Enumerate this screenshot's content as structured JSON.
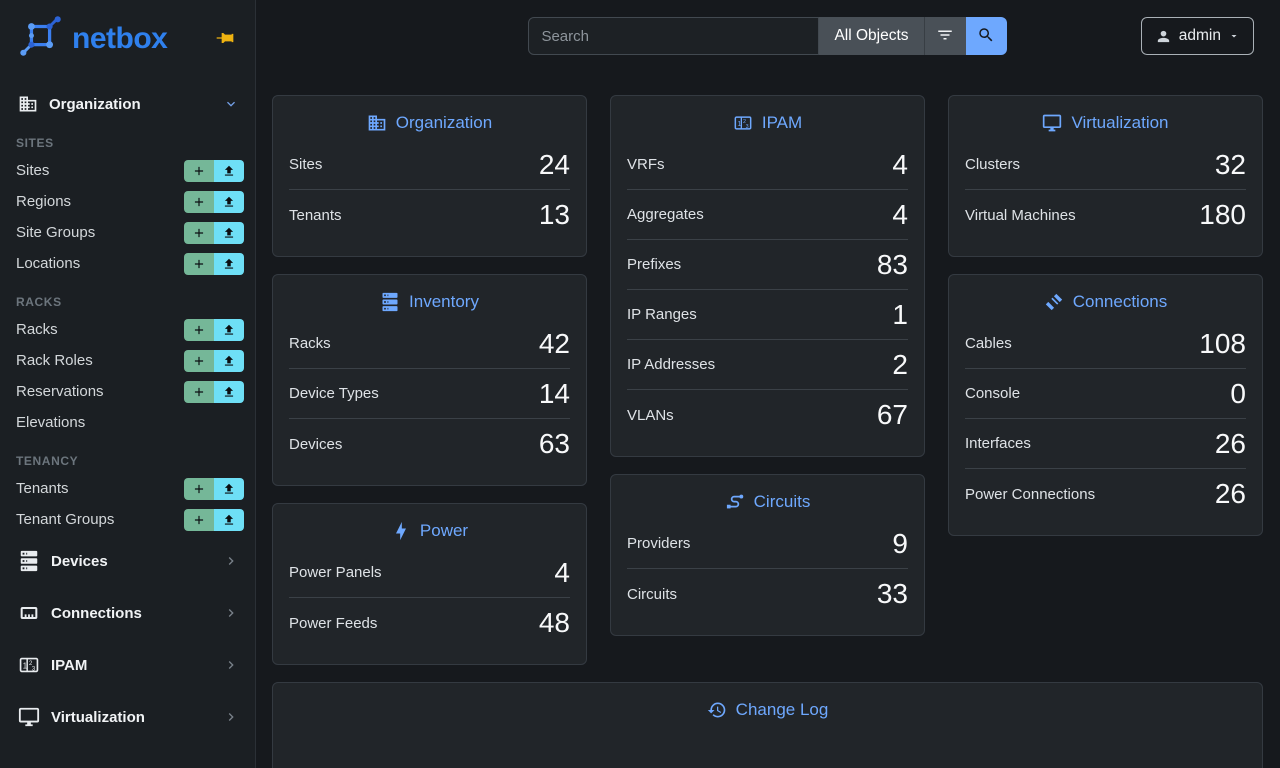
{
  "brand": {
    "name": "netbox",
    "logo_icon": "netbox-logo",
    "pin_icon": "pin-icon"
  },
  "topbar": {
    "search_placeholder": "Search",
    "scope_button_label": "All Objects",
    "filter_icon": "filter-icon",
    "search_icon": "search-icon",
    "user_label": "admin",
    "user_icon": "person-icon"
  },
  "sidebar": {
    "organization_menu": {
      "label": "Organization",
      "icon": "building-icon",
      "state": "expanded"
    },
    "sections": [
      {
        "title": "SITES",
        "items": [
          {
            "label": "Sites",
            "actions": true
          },
          {
            "label": "Regions",
            "actions": true
          },
          {
            "label": "Site Groups",
            "actions": true
          },
          {
            "label": "Locations",
            "actions": true
          }
        ]
      },
      {
        "title": "RACKS",
        "items": [
          {
            "label": "Racks",
            "actions": true
          },
          {
            "label": "Rack Roles",
            "actions": true
          },
          {
            "label": "Reservations",
            "actions": true
          },
          {
            "label": "Elevations",
            "actions": false
          }
        ]
      },
      {
        "title": "TENANCY",
        "items": [
          {
            "label": "Tenants",
            "actions": true
          },
          {
            "label": "Tenant Groups",
            "actions": true
          }
        ]
      }
    ],
    "action_icons": {
      "add": "plus-icon",
      "import": "upload-icon"
    },
    "menus": [
      {
        "label": "Devices",
        "icon": "server-icon"
      },
      {
        "label": "Connections",
        "icon": "ethernet-port-icon"
      },
      {
        "label": "IPAM",
        "icon": "counter-icon"
      },
      {
        "label": "Virtualization",
        "icon": "monitor-icon"
      }
    ]
  },
  "dashboard": {
    "columns": [
      [
        {
          "title": "Organization",
          "icon": "building-icon",
          "rows": [
            {
              "label": "Sites",
              "value": "24"
            },
            {
              "label": "Tenants",
              "value": "13"
            }
          ]
        },
        {
          "title": "Inventory",
          "icon": "server-icon",
          "rows": [
            {
              "label": "Racks",
              "value": "42"
            },
            {
              "label": "Device Types",
              "value": "14"
            },
            {
              "label": "Devices",
              "value": "63"
            }
          ]
        },
        {
          "title": "Power",
          "icon": "lightning-icon",
          "rows": [
            {
              "label": "Power Panels",
              "value": "4"
            },
            {
              "label": "Power Feeds",
              "value": "48"
            }
          ]
        }
      ],
      [
        {
          "title": "IPAM",
          "icon": "counter-icon",
          "rows": [
            {
              "label": "VRFs",
              "value": "4"
            },
            {
              "label": "Aggregates",
              "value": "4"
            },
            {
              "label": "Prefixes",
              "value": "83"
            },
            {
              "label": "IP Ranges",
              "value": "1"
            },
            {
              "label": "IP Addresses",
              "value": "2"
            },
            {
              "label": "VLANs",
              "value": "67"
            }
          ]
        },
        {
          "title": "Circuits",
          "icon": "transit-icon",
          "rows": [
            {
              "label": "Providers",
              "value": "9"
            },
            {
              "label": "Circuits",
              "value": "33"
            }
          ]
        }
      ],
      [
        {
          "title": "Virtualization",
          "icon": "monitor-icon",
          "rows": [
            {
              "label": "Clusters",
              "value": "32"
            },
            {
              "label": "Virtual Machines",
              "value": "180"
            }
          ]
        },
        {
          "title": "Connections",
          "icon": "cable-icon",
          "rows": [
            {
              "label": "Cables",
              "value": "108"
            },
            {
              "label": "Console",
              "value": "0"
            },
            {
              "label": "Interfaces",
              "value": "26"
            },
            {
              "label": "Power Connections",
              "value": "26"
            }
          ]
        }
      ]
    ],
    "change_log_card": {
      "title": "Change Log",
      "icon": "history-icon"
    }
  },
  "colors": {
    "accent_blue": "#6ea8fe",
    "brand_blue": "#2f80ed",
    "add_green": "#75b798",
    "import_cyan": "#6edff6",
    "pin_yellow": "#eeb211",
    "card_bg": "#212529",
    "sidebar_bg": "#1b1f23",
    "page_bg": "#16191d"
  }
}
